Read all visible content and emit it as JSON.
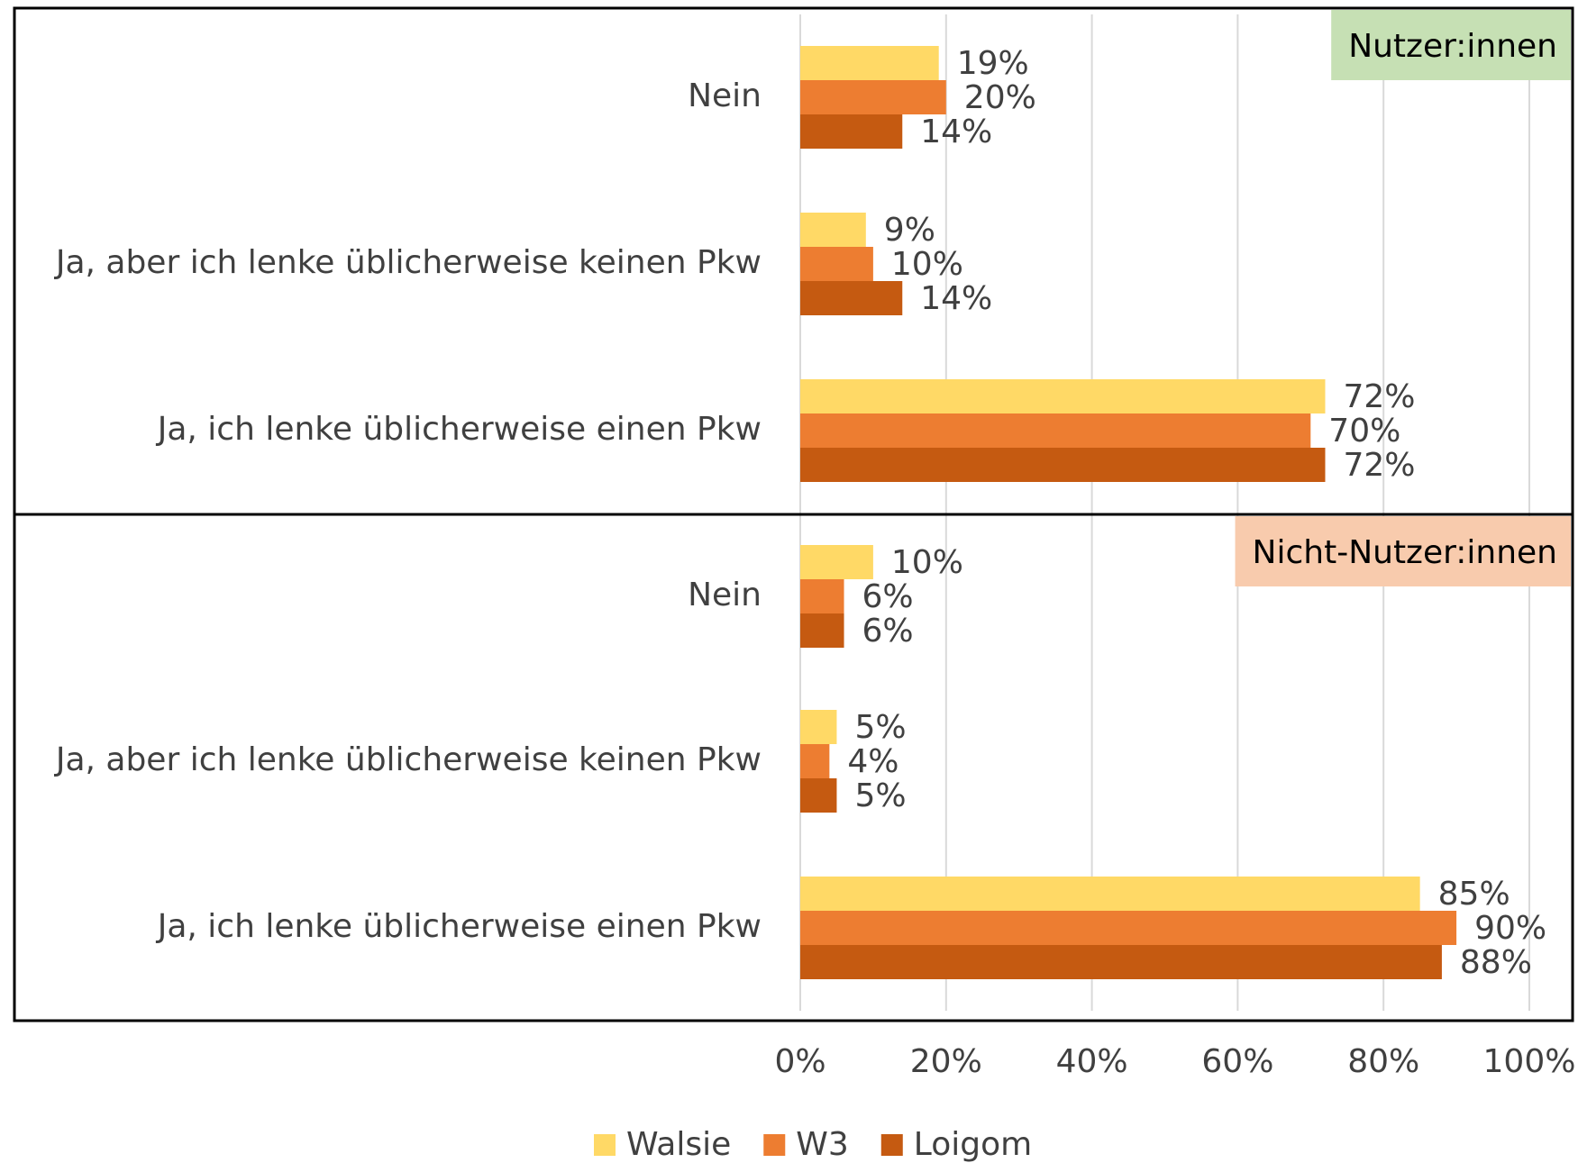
{
  "chart_data": {
    "type": "bar",
    "orientation": "horizontal",
    "xlim": [
      0,
      100
    ],
    "xticks": [
      {
        "value": 0,
        "label": "0%"
      },
      {
        "value": 20,
        "label": "20%"
      },
      {
        "value": 40,
        "label": "40%"
      },
      {
        "value": 60,
        "label": "60%"
      },
      {
        "value": 80,
        "label": "80%"
      },
      {
        "value": 100,
        "label": "100%"
      }
    ],
    "grid": true,
    "legend": "bottom",
    "series": [
      {
        "name": "Walsie",
        "color": "#ffd966"
      },
      {
        "name": "W3",
        "color": "#ed7d31"
      },
      {
        "name": "Loigom",
        "color": "#c55a11"
      }
    ],
    "panels": [
      {
        "title": "Nutzer:innen",
        "title_color": "#c6e0b4",
        "categories": [
          "Nein",
          "Ja, aber ich lenke üblicherweise keinen Pkw",
          "Ja, ich lenke üblicherweise einen Pkw"
        ],
        "series": [
          {
            "values": [
              19,
              9,
              72
            ],
            "value_labels": [
              "19%",
              "9%",
              "72%"
            ]
          },
          {
            "values": [
              20,
              10,
              70
            ],
            "value_labels": [
              "20%",
              "10%",
              "70%"
            ]
          },
          {
            "values": [
              14,
              14,
              72
            ],
            "value_labels": [
              "14%",
              "14%",
              "72%"
            ]
          }
        ]
      },
      {
        "title": "Nicht-Nutzer:innen",
        "title_color": "#f8cbad",
        "categories": [
          "Nein",
          "Ja, aber ich lenke üblicherweise keinen Pkw",
          "Ja, ich lenke üblicherweise einen Pkw"
        ],
        "series": [
          {
            "values": [
              10,
              5,
              85
            ],
            "value_labels": [
              "10%",
              "5%",
              "85%"
            ]
          },
          {
            "values": [
              6,
              4,
              90
            ],
            "value_labels": [
              "6%",
              "4%",
              "90%"
            ]
          },
          {
            "values": [
              6,
              5,
              88
            ],
            "value_labels": [
              "6%",
              "5%",
              "88%"
            ]
          }
        ]
      }
    ]
  }
}
